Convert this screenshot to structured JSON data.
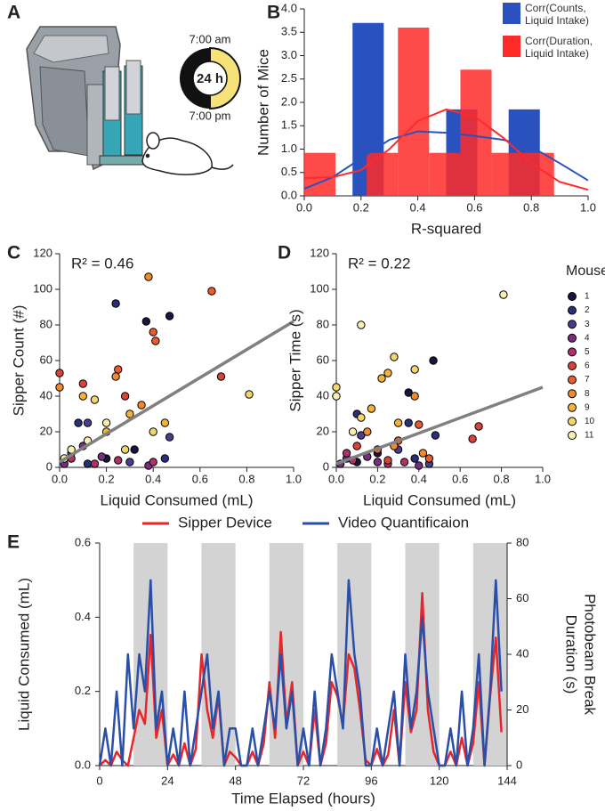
{
  "panel_a": {
    "label": "A",
    "clock": {
      "top": "7:00 am",
      "center": "24 h",
      "bottom": "7:00 pm"
    }
  },
  "chart_data": [
    {
      "type": "histogram",
      "panel": "B",
      "xlabel": "R-squared",
      "ylabel": "Number of Mice",
      "xlim": [
        0,
        1
      ],
      "ylim": [
        0,
        4
      ],
      "xticks": [
        {
          "value": 0,
          "label": "0.0"
        },
        0.2,
        0.4,
        0.6,
        0.8,
        {
          "value": 1,
          "label": "1.0"
        }
      ],
      "yticks": [
        {
          "value": 0,
          "label": "0.0"
        },
        0.5,
        {
          "value": 1,
          "label": "1.0"
        },
        1.5,
        {
          "value": 2,
          "label": "2.0"
        },
        2.5,
        {
          "value": 3,
          "label": "3.0"
        },
        3.5,
        {
          "value": 4,
          "label": "4.0"
        }
      ],
      "density_x": [
        0,
        0.1,
        0.2,
        0.3,
        0.4,
        0.5,
        0.6,
        0.7,
        0.8,
        0.9,
        1.0
      ],
      "series": [
        {
          "name": "Corr(Counts, Liquid Intake)",
          "color": "#2a52be",
          "bins": [
            0.17,
            0.28,
            0.39,
            0.5,
            0.61,
            0.72,
            0.83
          ],
          "values": [
            3.7,
            0,
            0,
            1.85,
            0,
            1.85
          ],
          "density": [
            0.15,
            0.4,
            0.8,
            1.2,
            1.38,
            1.35,
            1.28,
            1.2,
            1.05,
            0.7,
            0.33
          ]
        },
        {
          "name": "Corr(Duration, Liquid Intake)",
          "color": "#ff2a2a",
          "bins": [
            0.0,
            0.11,
            0.22,
            0.33,
            0.44,
            0.55,
            0.66,
            0.77,
            0.88
          ],
          "values": [
            0.92,
            0,
            0.92,
            3.6,
            0.92,
            2.7,
            0.92,
            0.92
          ],
          "density": [
            0.38,
            0.4,
            0.55,
            1.0,
            1.6,
            1.85,
            1.7,
            1.25,
            0.7,
            0.3,
            0.13
          ]
        }
      ]
    },
    {
      "type": "scatter",
      "panel": "C",
      "xlabel": "Liquid Consumed (mL)",
      "ylabel": "Sipper Count (#)",
      "annotation": "R² = 0.46",
      "xlim": [
        0,
        1
      ],
      "ylim": [
        0,
        120
      ],
      "xticks": [
        {
          "value": 0,
          "label": "0.0"
        },
        0.2,
        0.4,
        0.6,
        0.8,
        {
          "value": 1,
          "label": "1.0"
        }
      ],
      "yticks": [
        0,
        20,
        40,
        60,
        80,
        100,
        120
      ],
      "fit_x": [
        0,
        1
      ],
      "fit_y": [
        3,
        82
      ],
      "fit_color": "#808080",
      "series": [
        {
          "color": "#16163f",
          "x": [
            0.37,
            0.47,
            0.32,
            0.2
          ],
          "y": [
            82,
            85,
            10,
            5
          ]
        },
        {
          "color": "#2b2f7a",
          "x": [
            0.24,
            0.08,
            0.45,
            0.12
          ],
          "y": [
            92,
            25,
            5,
            2
          ]
        },
        {
          "color": "#4a3d8f",
          "x": [
            0.12,
            0.47,
            0.3,
            0.05
          ],
          "y": [
            25,
            17,
            3,
            8
          ]
        },
        {
          "color": "#7a2d7f",
          "x": [
            0.02,
            0.18,
            0.38,
            0.1
          ],
          "y": [
            2,
            6,
            1,
            12
          ]
        },
        {
          "color": "#b0306a",
          "x": [
            0.05,
            0.25,
            0.15,
            0.4
          ],
          "y": [
            5,
            4,
            2,
            3
          ]
        },
        {
          "color": "#d8443a",
          "x": [
            0.0,
            0.69,
            0.1,
            0.28
          ],
          "y": [
            53,
            51,
            47,
            40
          ]
        },
        {
          "color": "#ef5a2a",
          "x": [
            0.65,
            0.4,
            0.41,
            0.25
          ],
          "y": [
            99,
            76,
            71,
            55
          ]
        },
        {
          "color": "#f08a2c",
          "x": [
            0.38,
            0.24,
            0.35,
            0.0
          ],
          "y": [
            107,
            51,
            35,
            45
          ]
        },
        {
          "color": "#f3b33a",
          "x": [
            0.2,
            0.3,
            0.45,
            0.1
          ],
          "y": [
            20,
            30,
            25,
            40
          ]
        },
        {
          "color": "#f3d66b",
          "x": [
            0.81,
            0.15,
            0.4,
            0.28
          ],
          "y": [
            41,
            38,
            20,
            10
          ]
        },
        {
          "color": "#f8f0b0",
          "x": [
            0.05,
            0.12,
            0.02,
            0.2
          ],
          "y": [
            10,
            15,
            5,
            25
          ]
        }
      ]
    },
    {
      "type": "scatter",
      "panel": "D",
      "xlabel": "Liquid Consumed (mL)",
      "ylabel": "Sipper Time (s)",
      "annotation": "R² = 0.22",
      "legend_title": "Mouse",
      "xlim": [
        0,
        1
      ],
      "ylim": [
        0,
        120
      ],
      "xticks": [
        {
          "value": 0,
          "label": "0.0"
        },
        0.2,
        0.4,
        0.6,
        0.8,
        {
          "value": 1,
          "label": "1.0"
        }
      ],
      "yticks": [
        0,
        20,
        40,
        60,
        80,
        100,
        120
      ],
      "fit_x": [
        0,
        1
      ],
      "fit_y": [
        2,
        45
      ],
      "fit_color": "#808080",
      "series": [
        {
          "name": "1",
          "color": "#16163f",
          "x": [
            0.47,
            0.35,
            0.2,
            0.1
          ],
          "y": [
            60,
            42,
            8,
            3
          ]
        },
        {
          "name": "2",
          "color": "#2b2f7a",
          "x": [
            0.35,
            0.48,
            0.1,
            0.38
          ],
          "y": [
            25,
            18,
            30,
            5
          ]
        },
        {
          "name": "3",
          "color": "#4a3d8f",
          "x": [
            0.12,
            0.3,
            0.05,
            0.45
          ],
          "y": [
            18,
            10,
            5,
            2
          ]
        },
        {
          "name": "4",
          "color": "#7a2d7f",
          "x": [
            0.02,
            0.2,
            0.4,
            0.15
          ],
          "y": [
            2,
            3,
            1,
            6
          ]
        },
        {
          "name": "5",
          "color": "#b0306a",
          "x": [
            0.08,
            0.25,
            0.33,
            0.05
          ],
          "y": [
            4,
            2,
            3,
            8
          ]
        },
        {
          "name": "6",
          "color": "#d8443a",
          "x": [
            0.69,
            0.66,
            0.25,
            0.1
          ],
          "y": [
            23,
            16,
            4,
            12
          ]
        },
        {
          "name": "7",
          "color": "#ef5a2a",
          "x": [
            0.4,
            0.3,
            0.2,
            0.45
          ],
          "y": [
            24,
            15,
            10,
            5
          ]
        },
        {
          "name": "8",
          "color": "#f08a2c",
          "x": [
            0.38,
            0.15,
            0.28,
            0.42
          ],
          "y": [
            40,
            20,
            12,
            8
          ]
        },
        {
          "name": "9",
          "color": "#f3b33a",
          "x": [
            0.25,
            0.22,
            0.17,
            0.3
          ],
          "y": [
            53,
            50,
            33,
            25
          ]
        },
        {
          "name": "10",
          "color": "#f3d66b",
          "x": [
            0.28,
            0.38,
            0.12,
            0.0
          ],
          "y": [
            62,
            55,
            28,
            45
          ]
        },
        {
          "name": "11",
          "color": "#f8f0b0",
          "x": [
            0.81,
            0.12,
            0.0,
            0.08
          ],
          "y": [
            97,
            80,
            40,
            20
          ]
        }
      ]
    },
    {
      "type": "line",
      "panel": "E",
      "xlabel": "Time Elapsed (hours)",
      "ylabel": "Liquid Consumed (mL)",
      "y2label": [
        "Photobeam Break",
        "Duration (s)"
      ],
      "xlim": [
        0,
        144
      ],
      "ylim": [
        0,
        0.6
      ],
      "y2lim": [
        0,
        80
      ],
      "xticks": [
        0,
        24,
        48,
        72,
        96,
        120,
        144
      ],
      "yticks": [
        {
          "value": 0,
          "label": "0.0"
        },
        0.2,
        0.4,
        0.6
      ],
      "y2ticks": [
        0,
        20,
        40,
        60,
        80
      ],
      "shaded": [
        [
          12,
          24
        ],
        [
          36,
          48
        ],
        [
          60,
          72
        ],
        [
          84,
          96
        ],
        [
          108,
          120
        ],
        [
          132,
          144
        ]
      ],
      "x": [
        0,
        2,
        4,
        6,
        8,
        10,
        12,
        14,
        16,
        18,
        20,
        22,
        24,
        26,
        28,
        30,
        32,
        34,
        36,
        38,
        40,
        42,
        44,
        46,
        48,
        50,
        52,
        54,
        56,
        58,
        60,
        62,
        64,
        66,
        68,
        70,
        72,
        74,
        76,
        78,
        80,
        82,
        84,
        86,
        88,
        90,
        92,
        94,
        96,
        98,
        100,
        102,
        104,
        106,
        108,
        110,
        112,
        114,
        116,
        118,
        120,
        122,
        124,
        126,
        128,
        130,
        132,
        134,
        136,
        138,
        140,
        142
      ],
      "series": [
        {
          "name": "Sipper Device",
          "color": "#e8262a",
          "axis": "y2",
          "values": [
            0,
            2,
            0,
            5,
            2,
            0,
            10,
            20,
            15,
            47,
            10,
            20,
            0,
            4,
            0,
            8,
            0,
            6,
            40,
            20,
            10,
            25,
            0,
            5,
            3,
            0,
            0,
            5,
            0,
            8,
            30,
            10,
            48,
            15,
            30,
            0,
            5,
            0,
            20,
            0,
            8,
            30,
            25,
            15,
            40,
            35,
            20,
            2,
            0,
            6,
            0,
            4,
            20,
            0,
            30,
            12,
            20,
            62,
            20,
            5,
            0,
            0,
            5,
            0,
            10,
            0,
            8,
            30,
            0,
            25,
            46,
            12
          ]
        },
        {
          "name": "Video Quantificaion",
          "color": "#2a4fa8",
          "values": [
            0,
            0.1,
            0,
            0.2,
            0,
            0.3,
            0.1,
            0.3,
            0.2,
            0.5,
            0.1,
            0.2,
            0,
            0.1,
            0,
            0.2,
            0,
            0.1,
            0.2,
            0.3,
            0.1,
            0.2,
            0,
            0.1,
            0.1,
            0,
            0,
            0.1,
            0,
            0.1,
            0.2,
            0.1,
            0.3,
            0.1,
            0.2,
            0,
            0.1,
            0,
            0.2,
            0,
            0.1,
            0.3,
            0.2,
            0.1,
            0.5,
            0.3,
            0.2,
            0,
            0,
            0.1,
            0,
            0.1,
            0.2,
            0,
            0.3,
            0.1,
            0.2,
            0.4,
            0.2,
            0.1,
            0,
            0,
            0.1,
            0,
            0.2,
            0,
            0.1,
            0.3,
            0,
            0.2,
            0.5,
            0.2
          ]
        }
      ]
    }
  ]
}
